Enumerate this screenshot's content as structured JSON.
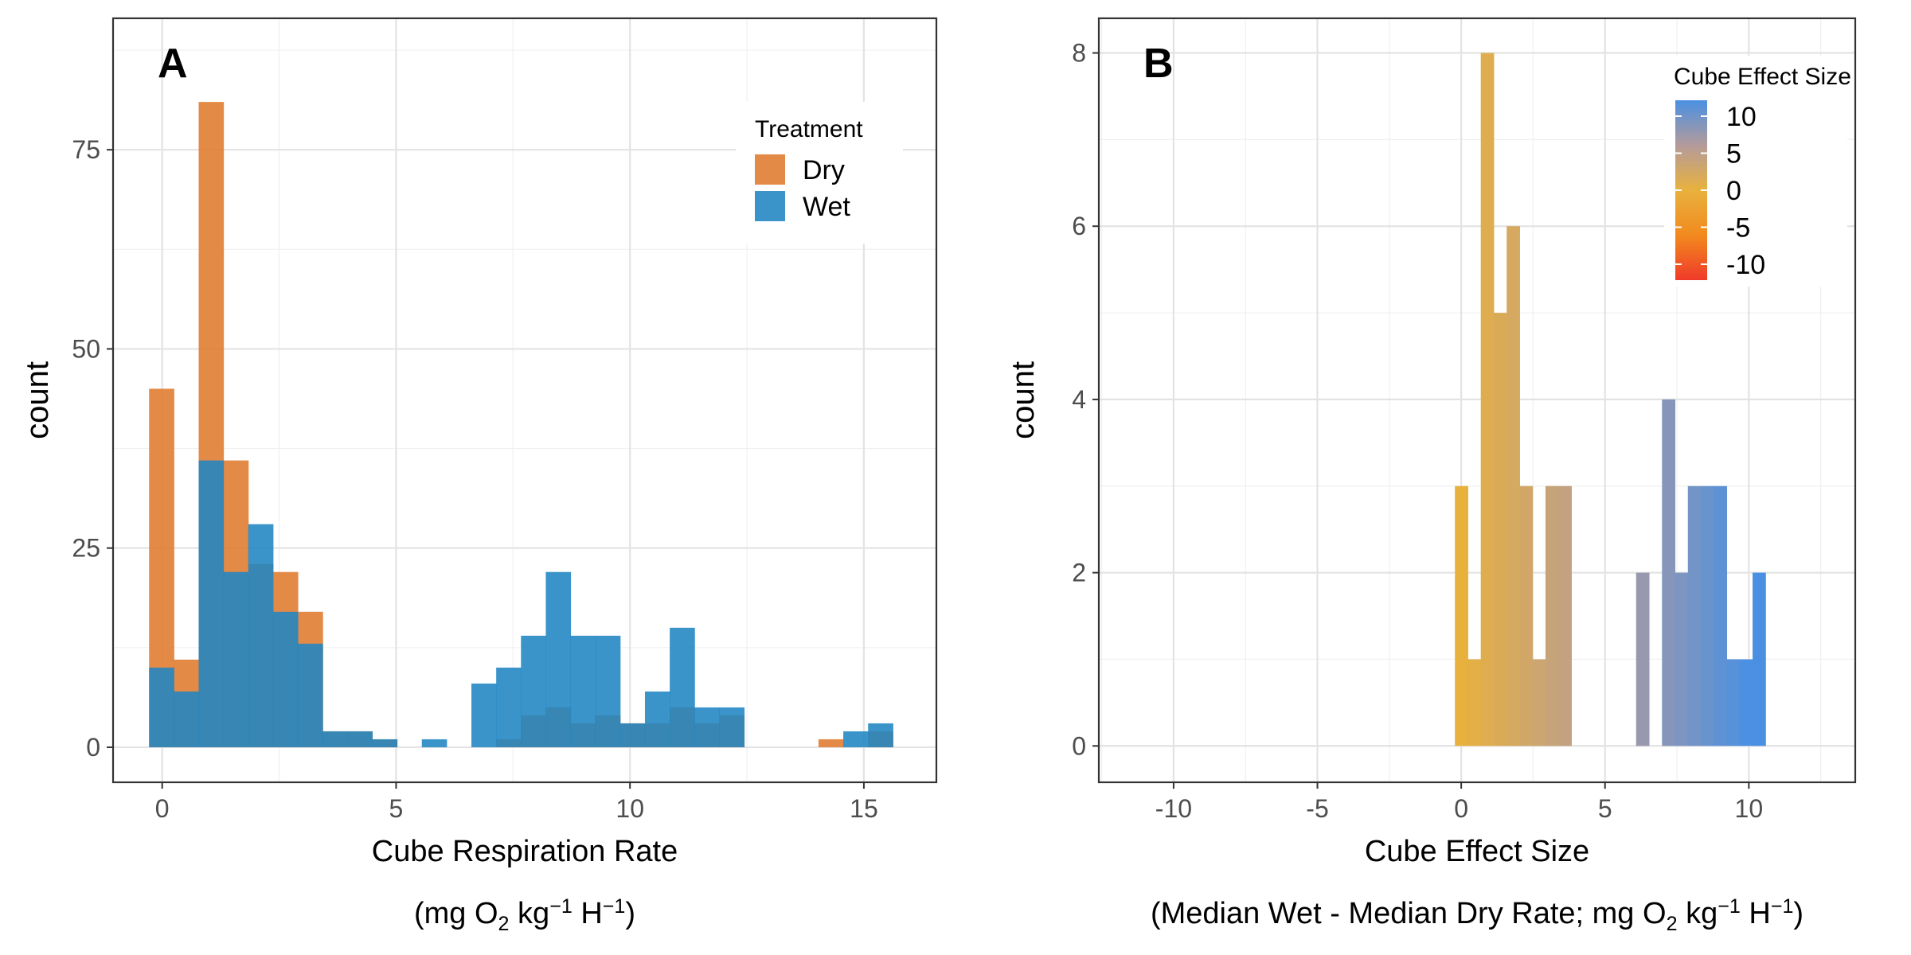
{
  "chart_data": [
    {
      "panel_label": "A",
      "type": "bar",
      "subtype": "overlaid-histogram",
      "xlabel": "Cube Respiration Rate",
      "xlabel_units": {
        "prefix": "(mg O",
        "sub": "2",
        "mid": " kg",
        "sup1": "−1",
        "mid2": " H",
        "sup2": "−1",
        "suffix": ")"
      },
      "ylabel": "count",
      "xlim": [
        -1.05,
        16.55
      ],
      "ylim": [
        -4.4,
        91.5
      ],
      "xticks": [
        0,
        5,
        10,
        15
      ],
      "yticks": [
        0,
        25,
        50,
        75
      ],
      "bin_width": 0.53,
      "grid": true,
      "legend": {
        "title": "Treatment",
        "position": "top-right"
      },
      "series": [
        {
          "name": "Dry",
          "color": "#E07A2E",
          "bin_starts": [
            -0.28,
            0.25,
            0.78,
            1.31,
            1.84,
            2.37,
            2.9,
            3.43,
            3.96,
            4.49,
            5.02,
            5.55,
            6.08,
            6.61,
            7.14,
            7.67,
            8.2,
            8.73,
            9.26,
            9.79,
            10.32,
            10.85,
            11.38,
            11.91,
            12.44,
            12.97,
            13.5,
            14.03,
            14.56,
            15.09
          ],
          "values": [
            45,
            11,
            81,
            36,
            23,
            22,
            17,
            2,
            2,
            1,
            0,
            0,
            0,
            0,
            1,
            4,
            5,
            3,
            4,
            3,
            3,
            5,
            3,
            4,
            0,
            0,
            0,
            1,
            0,
            2
          ]
        },
        {
          "name": "Wet",
          "color": "#1F85C3",
          "bin_starts": [
            -0.28,
            0.25,
            0.78,
            1.31,
            1.84,
            2.37,
            2.9,
            3.43,
            3.96,
            4.49,
            5.02,
            5.55,
            6.08,
            6.61,
            7.14,
            7.67,
            8.2,
            8.73,
            9.26,
            9.79,
            10.32,
            10.85,
            11.38,
            11.91,
            12.44,
            12.97,
            13.5,
            14.03,
            14.56,
            15.09
          ],
          "values": [
            10,
            7,
            36,
            22,
            28,
            17,
            13,
            2,
            2,
            1,
            0,
            1,
            0,
            8,
            10,
            14,
            22,
            14,
            14,
            3,
            7,
            15,
            5,
            5,
            0,
            0,
            0,
            0,
            2,
            3
          ]
        }
      ]
    },
    {
      "panel_label": "B",
      "type": "bar",
      "subtype": "histogram-gradient-fill",
      "xlabel": "Cube Effect Size",
      "xlabel_units": {
        "prefix": "(Median Wet - Median Dry Rate; mg O",
        "sub": "2",
        "mid": " kg",
        "sup1": "−1",
        "mid2": " H",
        "sup2": "−1",
        "suffix": ")"
      },
      "ylabel": "count",
      "xlim": [
        -12.6,
        13.7
      ],
      "ylim": [
        -0.42,
        8.4
      ],
      "xticks": [
        -10,
        -5,
        0,
        5,
        10
      ],
      "yticks": [
        0,
        2,
        4,
        6,
        8
      ],
      "bin_width": 0.45,
      "grid": true,
      "legend": {
        "title": "Cube Effect Size",
        "position": "top-right",
        "type": "colorbar",
        "labels": [
          "10",
          "5",
          "0",
          "-5",
          "-10"
        ],
        "colors": [
          "#4A90E2",
          "#B49B9B",
          "#E8B13E",
          "#F28A1E",
          "#F03A2A"
        ]
      },
      "bin_starts": [
        -0.22,
        0.23,
        0.68,
        1.13,
        1.58,
        2.03,
        2.48,
        2.93,
        3.38,
        3.83,
        4.28,
        4.73,
        5.18,
        5.63,
        6.08,
        6.53,
        6.98,
        7.43,
        7.88,
        8.33,
        8.78,
        9.23,
        9.68,
        10.13,
        10.58
      ],
      "values": [
        3,
        1,
        8,
        5,
        6,
        3,
        1,
        3,
        3,
        0,
        0,
        0,
        0,
        0,
        2,
        0,
        4,
        2,
        3,
        3,
        3,
        1,
        1,
        2,
        0
      ]
    }
  ]
}
